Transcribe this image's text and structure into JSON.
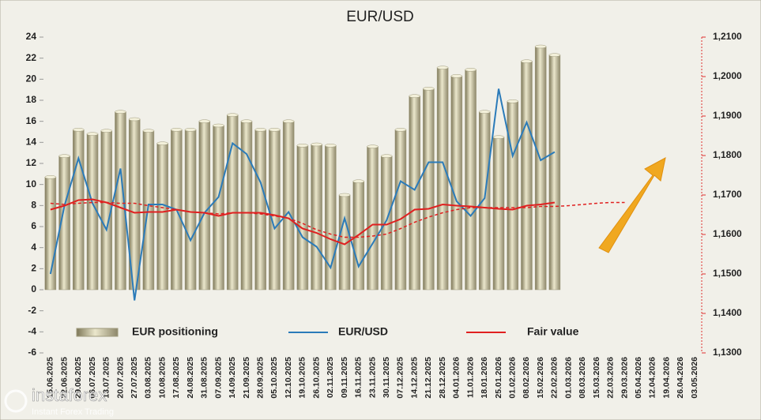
{
  "chart_data": {
    "type": "combo",
    "title": "EUR/USD",
    "categories": [
      "15.06.2025",
      "22.06.2025",
      "29.06.2025",
      "06.07.2025",
      "13.07.2025",
      "20.07.2025",
      "27.07.2025",
      "03.08.2025",
      "10.08.2025",
      "17.08.2025",
      "24.08.2025",
      "31.08.2025",
      "07.09.2025",
      "14.09.2025",
      "21.09.2025",
      "28.09.2025",
      "05.10.2025",
      "12.10.2025",
      "19.10.2025",
      "26.10.2025",
      "02.11.2025",
      "09.11.2025",
      "16.11.2025",
      "23.11.2025",
      "30.11.2025",
      "07.12.2025",
      "14.12.2025",
      "21.12.2025",
      "28.12.2025",
      "04.01.2026",
      "11.01.2026",
      "18.01.2026",
      "25.01.2026",
      "01.02.2026",
      "08.02.2026",
      "15.02.2026",
      "22.02.2026",
      "01.03.2026",
      "08.03.2026",
      "15.03.2026",
      "22.03.2026",
      "29.03.2026",
      "05.04.2026",
      "12.04.2026",
      "19.04.2026",
      "26.04.2026",
      "03.05.2026"
    ],
    "ylim": [
      -6,
      24
    ],
    "yticks": [
      -6,
      -4,
      -2,
      0,
      2,
      4,
      6,
      8,
      10,
      12,
      14,
      16,
      18,
      20,
      22,
      24
    ],
    "y2lim": [
      1.13,
      1.21
    ],
    "y2ticks": [
      {
        "value": 1.13,
        "label": "1,1300"
      },
      {
        "value": 1.14,
        "label": "1,1400"
      },
      {
        "value": 1.15,
        "label": "1,1500"
      },
      {
        "value": 1.16,
        "label": "1,1600"
      },
      {
        "value": 1.17,
        "label": "1,1700"
      },
      {
        "value": 1.18,
        "label": "1,1800"
      },
      {
        "value": 1.19,
        "label": "1,1900"
      },
      {
        "value": 1.2,
        "label": "1,2000"
      },
      {
        "value": 1.21,
        "label": "1,2100"
      }
    ],
    "legend": "bottom",
    "series": [
      {
        "name": "EUR positioning",
        "type": "bar",
        "color": "#c9c39f",
        "values": [
          10.7,
          12.7,
          15.2,
          14.8,
          15.1,
          16.9,
          16.2,
          15.1,
          13.9,
          15.2,
          15.2,
          16.0,
          15.6,
          16.6,
          16.0,
          15.2,
          15.2,
          16.0,
          13.7,
          13.8,
          13.7,
          9.0,
          10.3,
          13.6,
          12.7,
          15.2,
          18.4,
          19.1,
          21.1,
          20.3,
          20.9,
          16.9,
          14.5,
          17.9,
          21.7,
          23.1,
          22.3,
          null,
          null,
          null,
          null,
          null,
          null,
          null,
          null,
          null,
          null
        ]
      },
      {
        "name": "EUR/USD",
        "type": "line",
        "axis": "y2",
        "color": "#2b7bb9",
        "values": [
          1.15,
          1.1673,
          1.1793,
          1.1679,
          1.1612,
          1.1767,
          1.1433,
          1.1676,
          1.1676,
          1.1663,
          1.1585,
          1.1655,
          1.1695,
          1.1831,
          1.1804,
          1.1732,
          1.1615,
          1.1657,
          1.1593,
          1.1569,
          1.1516,
          1.1641,
          1.1519,
          1.1577,
          1.1636,
          1.1735,
          1.1713,
          1.1783,
          1.1783,
          1.1684,
          1.1647,
          1.1692,
          1.1969,
          1.1799,
          1.1884,
          1.1788,
          1.1809,
          null,
          null,
          null,
          null,
          null,
          null,
          null,
          null,
          null,
          null
        ]
      },
      {
        "name": "Fair value",
        "type": "line",
        "axis": "y2",
        "color": "#e02020",
        "values": [
          1.1663,
          1.1673,
          1.1687,
          1.1689,
          1.1681,
          1.1668,
          1.1655,
          1.1657,
          1.1657,
          1.1663,
          1.1657,
          1.1655,
          1.1647,
          1.1655,
          1.1655,
          1.1655,
          1.1649,
          1.1641,
          1.1615,
          1.1604,
          1.1588,
          1.1575,
          1.1599,
          1.1625,
          1.1625,
          1.1639,
          1.1663,
          1.1665,
          1.1676,
          1.1673,
          1.1671,
          1.1668,
          1.1665,
          1.1663,
          1.1673,
          1.1676,
          1.1681,
          null,
          null,
          null,
          null,
          null,
          null,
          null,
          null,
          null,
          null
        ]
      },
      {
        "type": "line",
        "axis": "y2",
        "color": "#e02020",
        "dashed": true,
        "values": [
          1.1679,
          1.1676,
          1.1679,
          1.1681,
          1.1681,
          1.1679,
          1.1679,
          1.1673,
          1.1668,
          1.1663,
          1.1657,
          1.1655,
          1.1652,
          1.1655,
          1.1655,
          1.1652,
          1.1647,
          1.1641,
          1.1628,
          1.1612,
          1.1601,
          1.1593,
          1.1593,
          1.1596,
          1.1601,
          1.1615,
          1.1631,
          1.1644,
          1.1655,
          1.1663,
          1.1668,
          1.1668,
          1.1668,
          1.1668,
          1.1668,
          1.1671,
          1.1671,
          1.1673,
          1.1676,
          1.1679,
          1.1681,
          1.1681,
          null,
          null,
          null,
          null,
          null
        ]
      }
    ]
  },
  "watermark": {
    "brand": "instaforex",
    "tagline": "Instant Forex Trading"
  }
}
